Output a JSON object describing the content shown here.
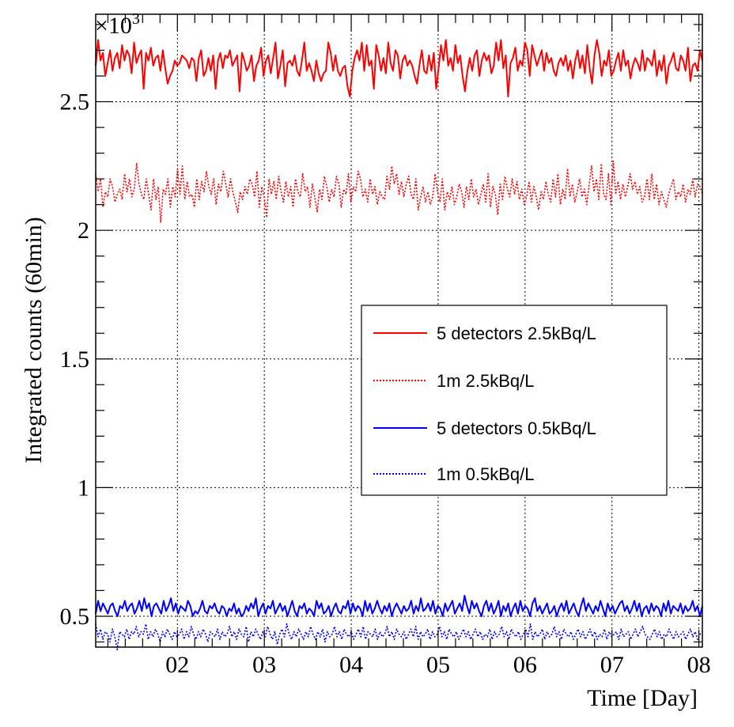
{
  "chart_data": {
    "type": "line",
    "xlabel": "Time [Day]",
    "ylabel": "Integrated counts (60min)",
    "y_multiplier": "×10",
    "y_multiplier_exponent": "3",
    "xlim": [
      1.06,
      8.04
    ],
    "ylim": [
      0.38,
      2.84
    ],
    "x_ticks": [
      2,
      3,
      4,
      5,
      6,
      7,
      8
    ],
    "x_tick_labels": [
      "02",
      "03",
      "04",
      "05",
      "06",
      "07",
      "08"
    ],
    "y_ticks": [
      0.5,
      1,
      1.5,
      2,
      2.5
    ],
    "y_tick_labels": [
      "0.5",
      "1",
      "1.5",
      "2",
      "2.5"
    ],
    "grid": true,
    "legend_position": "right-middle",
    "series": [
      {
        "name": "5 detectors 2.5kBq/L",
        "color": "#ff0000",
        "style": "solid",
        "values": [
          2.64,
          2.74,
          2.66,
          2.69,
          2.6,
          2.65,
          2.7,
          2.62,
          2.67,
          2.69,
          2.63,
          2.72,
          2.66,
          2.7,
          2.68,
          2.61,
          2.73,
          2.65,
          2.68,
          2.7,
          2.55,
          2.69,
          2.66,
          2.71,
          2.64,
          2.67,
          2.68,
          2.62,
          2.7,
          2.63,
          2.57,
          2.6,
          2.62,
          2.66,
          2.64,
          2.65,
          2.68,
          2.67,
          2.66,
          2.63,
          2.67,
          2.66,
          2.58,
          2.67,
          2.7,
          2.6,
          2.62,
          2.67,
          2.62,
          2.68,
          2.55,
          2.66,
          2.69,
          2.63,
          2.68,
          2.67,
          2.7,
          2.64,
          2.66,
          2.68,
          2.54,
          2.69,
          2.66,
          2.62,
          2.64,
          2.68,
          2.58,
          2.64,
          2.66,
          2.71,
          2.6,
          2.66,
          2.68,
          2.61,
          2.67,
          2.73,
          2.59,
          2.64,
          2.7,
          2.56,
          2.65,
          2.66,
          2.64,
          2.68,
          2.62,
          2.6,
          2.66,
          2.73,
          2.62,
          2.65,
          2.62,
          2.58,
          2.66,
          2.61,
          2.58,
          2.61,
          2.62,
          2.73,
          2.69,
          2.62,
          2.68,
          2.62,
          2.6,
          2.63,
          2.64,
          2.56,
          2.52,
          2.62,
          2.67,
          2.7,
          2.66,
          2.73,
          2.62,
          2.72,
          2.64,
          2.66,
          2.55,
          2.72,
          2.68,
          2.62,
          2.67,
          2.61,
          2.73,
          2.65,
          2.62,
          2.7,
          2.68,
          2.59,
          2.66,
          2.68,
          2.64,
          2.66,
          2.64,
          2.6,
          2.57,
          2.64,
          2.7,
          2.62,
          2.61,
          2.68,
          2.62,
          2.69,
          2.55,
          2.63,
          2.72,
          2.66,
          2.74,
          2.64,
          2.67,
          2.62,
          2.72,
          2.65,
          2.68,
          2.6,
          2.54,
          2.62,
          2.67,
          2.62,
          2.68,
          2.7,
          2.6,
          2.66,
          2.69,
          2.66,
          2.68,
          2.61,
          2.64,
          2.73,
          2.66,
          2.74,
          2.63,
          2.68,
          2.52,
          2.65,
          2.67,
          2.71,
          2.62,
          2.66,
          2.64,
          2.73,
          2.7,
          2.6,
          2.72,
          2.68,
          2.64,
          2.67,
          2.7,
          2.62,
          2.69,
          2.65,
          2.67,
          2.62,
          2.6,
          2.65,
          2.67,
          2.64,
          2.68,
          2.62,
          2.66,
          2.59,
          2.66,
          2.7,
          2.63,
          2.68,
          2.61,
          2.72,
          2.63,
          2.57,
          2.68,
          2.74,
          2.69,
          2.6,
          2.66,
          2.64,
          2.7,
          2.6,
          2.62,
          2.66,
          2.69,
          2.62,
          2.7,
          2.64,
          2.66,
          2.59,
          2.64,
          2.67,
          2.65,
          2.62,
          2.7,
          2.62,
          2.67,
          2.66,
          2.64,
          2.7,
          2.6,
          2.66,
          2.62,
          2.68,
          2.57,
          2.64,
          2.66,
          2.69,
          2.63,
          2.62,
          2.68,
          2.66,
          2.62,
          2.71,
          2.58,
          2.64,
          2.65,
          2.62,
          2.7,
          2.66
        ]
      },
      {
        "name": "1m 2.5kBq/L",
        "color": "#ff0000",
        "style": "dotted",
        "values": [
          2.22,
          2.15,
          2.2,
          2.09,
          2.15,
          2.13,
          2.2,
          2.17,
          2.11,
          2.14,
          2.16,
          2.12,
          2.22,
          2.15,
          2.2,
          2.13,
          2.16,
          2.26,
          2.18,
          2.14,
          2.12,
          2.2,
          2.14,
          2.08,
          2.2,
          2.12,
          2.17,
          2.03,
          2.16,
          2.14,
          2.2,
          2.09,
          2.17,
          2.13,
          2.24,
          2.14,
          2.25,
          2.12,
          2.19,
          2.13,
          2.14,
          2.09,
          2.2,
          2.12,
          2.19,
          2.15,
          2.23,
          2.17,
          2.14,
          2.2,
          2.1,
          2.18,
          2.15,
          2.23,
          2.18,
          2.13,
          2.2,
          2.15,
          2.11,
          2.07,
          2.15,
          2.12,
          2.17,
          2.14,
          2.2,
          2.18,
          2.13,
          2.23,
          2.09,
          2.17,
          2.13,
          2.05,
          2.2,
          2.14,
          2.19,
          2.12,
          2.21,
          2.15,
          2.11,
          2.19,
          2.13,
          2.17,
          2.09,
          2.2,
          2.15,
          2.13,
          2.22,
          2.15,
          2.17,
          2.09,
          2.18,
          2.13,
          2.07,
          2.16,
          2.12,
          2.21,
          2.17,
          2.11,
          2.16,
          2.13,
          2.21,
          2.18,
          2.09,
          2.16,
          2.14,
          2.22,
          2.11,
          2.17,
          2.15,
          2.23,
          2.2,
          2.13,
          2.16,
          2.11,
          2.2,
          2.14,
          2.17,
          2.1,
          2.15,
          2.13,
          2.12,
          2.21,
          2.16,
          2.25,
          2.18,
          2.22,
          2.14,
          2.19,
          2.13,
          2.18,
          2.21,
          2.14,
          2.12,
          2.2,
          2.08,
          2.13,
          2.17,
          2.11,
          2.15,
          2.1,
          2.13,
          2.22,
          2.15,
          2.11,
          2.2,
          2.08,
          2.15,
          2.12,
          2.17,
          2.1,
          2.13,
          2.18,
          2.15,
          2.09,
          2.17,
          2.12,
          2.2,
          2.13,
          2.16,
          2.1,
          2.14,
          2.18,
          2.11,
          2.22,
          2.09,
          2.17,
          2.14,
          2.06,
          2.18,
          2.12,
          2.21,
          2.16,
          2.13,
          2.2,
          2.14,
          2.19,
          2.12,
          2.16,
          2.1,
          2.13,
          2.19,
          2.11,
          2.17,
          2.13,
          2.08,
          2.15,
          2.12,
          2.19,
          2.14,
          2.11,
          2.2,
          2.13,
          2.22,
          2.1,
          2.16,
          2.12,
          2.24,
          2.13,
          2.18,
          2.11,
          2.15,
          2.2,
          2.13,
          2.16,
          2.1,
          2.18,
          2.25,
          2.15,
          2.2,
          2.12,
          2.26,
          2.14,
          2.12,
          2.22,
          2.1,
          2.27,
          2.14,
          2.19,
          2.12,
          2.18,
          2.13,
          2.17,
          2.22,
          2.16,
          2.19,
          2.14,
          2.17,
          2.11,
          2.13,
          2.2,
          2.12,
          2.22,
          2.12,
          2.18,
          2.1,
          2.15,
          2.12,
          2.09,
          2.14,
          2.17,
          2.2,
          2.12,
          2.15,
          2.13,
          2.18,
          2.11,
          2.16,
          2.14,
          2.2,
          2.13,
          2.18,
          2.17,
          2.14
        ]
      },
      {
        "name": "5 detectors 0.5kBq/L",
        "color": "#0000ff",
        "style": "solid",
        "values": [
          0.51,
          0.56,
          0.52,
          0.55,
          0.53,
          0.51,
          0.54,
          0.55,
          0.52,
          0.5,
          0.54,
          0.53,
          0.56,
          0.52,
          0.54,
          0.55,
          0.51,
          0.53,
          0.56,
          0.52,
          0.57,
          0.53,
          0.55,
          0.5,
          0.54,
          0.55,
          0.53,
          0.51,
          0.56,
          0.52,
          0.54,
          0.57,
          0.52,
          0.55,
          0.51,
          0.54,
          0.53,
          0.52,
          0.56,
          0.54,
          0.5,
          0.52,
          0.51,
          0.53,
          0.56,
          0.52,
          0.51,
          0.54,
          0.53,
          0.55,
          0.52,
          0.51,
          0.54,
          0.53,
          0.5,
          0.53,
          0.52,
          0.55,
          0.51,
          0.53,
          0.5,
          0.51,
          0.54,
          0.52,
          0.55,
          0.53,
          0.57,
          0.5,
          0.53,
          0.55,
          0.51,
          0.54,
          0.53,
          0.56,
          0.51,
          0.53,
          0.55,
          0.52,
          0.54,
          0.5,
          0.53,
          0.56,
          0.52,
          0.5,
          0.54,
          0.53,
          0.55,
          0.51,
          0.53,
          0.52,
          0.5,
          0.56,
          0.53,
          0.55,
          0.51,
          0.52,
          0.54,
          0.5,
          0.53,
          0.55,
          0.52,
          0.51,
          0.54,
          0.53,
          0.56,
          0.51,
          0.55,
          0.52,
          0.54,
          0.53,
          0.5,
          0.56,
          0.52,
          0.55,
          0.51,
          0.53,
          0.56,
          0.53,
          0.51,
          0.54,
          0.52,
          0.55,
          0.5,
          0.53,
          0.55,
          0.53,
          0.51,
          0.54,
          0.52,
          0.53,
          0.56,
          0.51,
          0.54,
          0.52,
          0.57,
          0.52,
          0.53,
          0.55,
          0.52,
          0.56,
          0.51,
          0.54,
          0.53,
          0.5,
          0.55,
          0.52,
          0.54,
          0.56,
          0.51,
          0.53,
          0.55,
          0.52,
          0.58,
          0.54,
          0.51,
          0.56,
          0.53,
          0.55,
          0.52,
          0.5,
          0.54,
          0.56,
          0.52,
          0.55,
          0.51,
          0.53,
          0.56,
          0.5,
          0.54,
          0.52,
          0.55,
          0.5,
          0.53,
          0.55,
          0.51,
          0.56,
          0.52,
          0.54,
          0.53,
          0.5,
          0.55,
          0.57,
          0.52,
          0.54,
          0.51,
          0.53,
          0.55,
          0.51,
          0.52,
          0.54,
          0.5,
          0.53,
          0.55,
          0.52,
          0.56,
          0.51,
          0.53,
          0.55,
          0.52,
          0.5,
          0.54,
          0.57,
          0.52,
          0.55,
          0.53,
          0.51,
          0.54,
          0.52,
          0.56,
          0.53,
          0.5,
          0.55,
          0.52,
          0.54,
          0.51,
          0.53,
          0.55,
          0.56,
          0.52,
          0.54,
          0.51,
          0.53,
          0.56,
          0.52,
          0.55,
          0.5,
          0.53,
          0.54,
          0.51,
          0.55,
          0.52,
          0.54,
          0.53,
          0.5,
          0.55,
          0.52,
          0.56,
          0.51,
          0.54,
          0.53,
          0.52,
          0.55,
          0.51,
          0.54,
          0.52,
          0.53,
          0.56,
          0.52,
          0.54,
          0.5,
          0.54
        ]
      },
      {
        "name": "1m 0.5kBq/L",
        "color": "#0000ff",
        "style": "dotted",
        "values": [
          0.47,
          0.42,
          0.45,
          0.41,
          0.44,
          0.43,
          0.4,
          0.45,
          0.42,
          0.37,
          0.44,
          0.43,
          0.42,
          0.45,
          0.41,
          0.44,
          0.43,
          0.46,
          0.42,
          0.44,
          0.43,
          0.47,
          0.41,
          0.44,
          0.42,
          0.45,
          0.43,
          0.4,
          0.44,
          0.42,
          0.45,
          0.43,
          0.41,
          0.44,
          0.42,
          0.43,
          0.45,
          0.41,
          0.44,
          0.42,
          0.46,
          0.43,
          0.41,
          0.44,
          0.42,
          0.45,
          0.43,
          0.4,
          0.44,
          0.43,
          0.42,
          0.45,
          0.41,
          0.44,
          0.42,
          0.43,
          0.46,
          0.42,
          0.44,
          0.41,
          0.45,
          0.43,
          0.42,
          0.46,
          0.4,
          0.44,
          0.42,
          0.45,
          0.43,
          0.41,
          0.44,
          0.42,
          0.46,
          0.43,
          0.41,
          0.44,
          0.39,
          0.43,
          0.45,
          0.42,
          0.47,
          0.43,
          0.41,
          0.44,
          0.42,
          0.45,
          0.43,
          0.41,
          0.44,
          0.42,
          0.46,
          0.43,
          0.41,
          0.44,
          0.42,
          0.45,
          0.4,
          0.44,
          0.42,
          0.43,
          0.46,
          0.42,
          0.44,
          0.41,
          0.45,
          0.43,
          0.42,
          0.44,
          0.41,
          0.43,
          0.45,
          0.42,
          0.46,
          0.41,
          0.44,
          0.43,
          0.42,
          0.45,
          0.41,
          0.44,
          0.42,
          0.43,
          0.46,
          0.42,
          0.44,
          0.41,
          0.45,
          0.43,
          0.42,
          0.44,
          0.41,
          0.43,
          0.45,
          0.42,
          0.46,
          0.41,
          0.44,
          0.42,
          0.43,
          0.45,
          0.41,
          0.44,
          0.42,
          0.43,
          0.46,
          0.42,
          0.44,
          0.41,
          0.45,
          0.43,
          0.42,
          0.44,
          0.41,
          0.43,
          0.45,
          0.42,
          0.44,
          0.41,
          0.43,
          0.45,
          0.42,
          0.44,
          0.41,
          0.43,
          0.42,
          0.45,
          0.41,
          0.44,
          0.42,
          0.43,
          0.46,
          0.42,
          0.44,
          0.41,
          0.45,
          0.43,
          0.42,
          0.44,
          0.41,
          0.43,
          0.45,
          0.42,
          0.47,
          0.41,
          0.44,
          0.42,
          0.43,
          0.45,
          0.41,
          0.44,
          0.42,
          0.43,
          0.46,
          0.42,
          0.44,
          0.41,
          0.45,
          0.43,
          0.42,
          0.44,
          0.41,
          0.43,
          0.45,
          0.42,
          0.44,
          0.41,
          0.43,
          0.45,
          0.42,
          0.44,
          0.41,
          0.43,
          0.42,
          0.45,
          0.41,
          0.44,
          0.42,
          0.43,
          0.44,
          0.41,
          0.45,
          0.42,
          0.43,
          0.44,
          0.41,
          0.43,
          0.45,
          0.42,
          0.44,
          0.46,
          0.43,
          0.42,
          0.41,
          0.43,
          0.45,
          0.42,
          0.44,
          0.41,
          0.43,
          0.42,
          0.45,
          0.43,
          0.41,
          0.44,
          0.42,
          0.43,
          0.44,
          0.41,
          0.43,
          0.45,
          0.42,
          0.44,
          0.41,
          0.43,
          0.44
        ]
      }
    ]
  }
}
